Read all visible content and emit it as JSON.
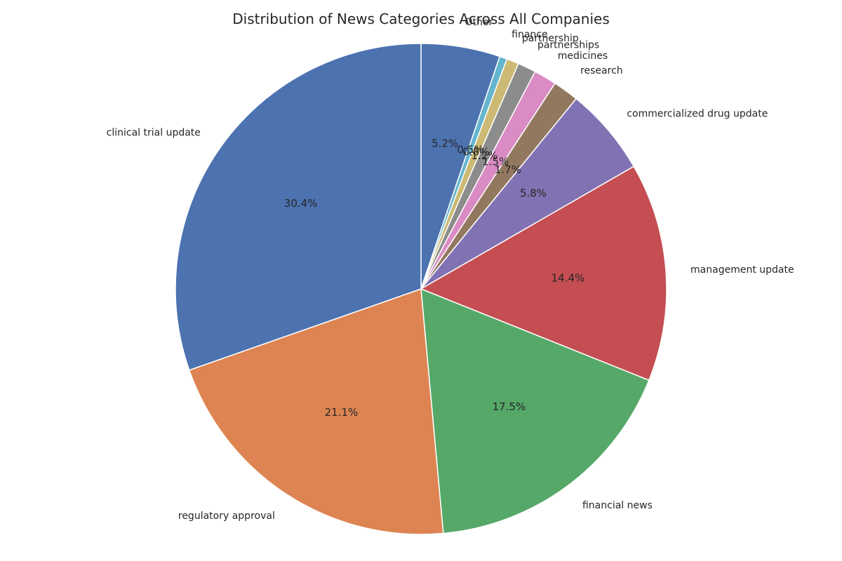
{
  "chart_data": {
    "type": "pie",
    "title": "Distribution of News Categories Across All Companies",
    "start_angle_deg": 90,
    "direction": "clockwise",
    "slices": [
      {
        "label": "Other",
        "value": 5.2,
        "pct_label": "5.2%",
        "color": "#4c72b0"
      },
      {
        "label": "finance",
        "value": 0.5,
        "pct_label": "0.5%",
        "color": "#64b5cd"
      },
      {
        "label": "partnership",
        "value": 0.8,
        "pct_label": "0.8%",
        "color": "#ccb974"
      },
      {
        "label": "partnerships",
        "value": 1.2,
        "pct_label": "1.2%",
        "color": "#8c8c8c"
      },
      {
        "label": "medicines",
        "value": 1.5,
        "pct_label": "1.5%",
        "color": "#da8bc3"
      },
      {
        "label": "research",
        "value": 1.7,
        "pct_label": "1.7%",
        "color": "#937860"
      },
      {
        "label": "commercialized drug update",
        "value": 5.8,
        "pct_label": "5.8%",
        "color": "#8172b3"
      },
      {
        "label": "management update",
        "value": 14.4,
        "pct_label": "14.4%",
        "color": "#c44e52"
      },
      {
        "label": "financial news",
        "value": 17.5,
        "pct_label": "17.5%",
        "color": "#55a868"
      },
      {
        "label": "regulatory approval",
        "value": 21.1,
        "pct_label": "21.1%",
        "color": "#dd8452"
      },
      {
        "label": "clinical trial update",
        "value": 30.4,
        "pct_label": "30.4%",
        "color": "#4c72b0"
      }
    ]
  }
}
